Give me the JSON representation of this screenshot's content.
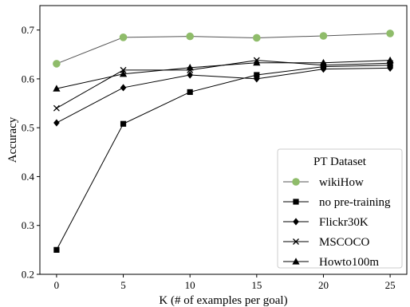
{
  "chart_data": {
    "type": "line",
    "title": "",
    "xlabel": "K (# of examples per goal)",
    "ylabel": "Accuracy",
    "x": [
      0,
      5,
      10,
      15,
      20,
      25
    ],
    "xticks": [
      0,
      5,
      10,
      15,
      20,
      25
    ],
    "yticks": [
      0.2,
      0.3,
      0.4,
      0.5,
      0.6,
      0.7
    ],
    "xlim": [
      -1.25,
      26.25
    ],
    "ylim": [
      0.2,
      0.75
    ],
    "grid": false,
    "legend": {
      "title": "PT Dataset",
      "position": "lower-right"
    },
    "series": [
      {
        "name": "wikiHow",
        "marker": "circle",
        "color": "#8fbc6a",
        "line_color": "#555555",
        "values": [
          0.631,
          0.685,
          0.687,
          0.684,
          0.688,
          0.693
        ]
      },
      {
        "name": "no pre-training",
        "marker": "square",
        "color": "#000000",
        "line_color": "#000000",
        "values": [
          0.25,
          0.508,
          0.573,
          0.608,
          0.625,
          0.628
        ]
      },
      {
        "name": "Flickr30K",
        "marker": "diamond",
        "color": "#000000",
        "line_color": "#000000",
        "values": [
          0.51,
          0.582,
          0.608,
          0.6,
          0.62,
          0.622
        ]
      },
      {
        "name": "MSCOCO",
        "marker": "x",
        "color": "#000000",
        "line_color": "#000000",
        "values": [
          0.54,
          0.618,
          0.618,
          0.638,
          0.628,
          0.632
        ]
      },
      {
        "name": "Howto100m",
        "marker": "triangle",
        "color": "#000000",
        "line_color": "#000000",
        "values": [
          0.58,
          0.61,
          0.623,
          0.633,
          0.633,
          0.638
        ]
      }
    ]
  }
}
